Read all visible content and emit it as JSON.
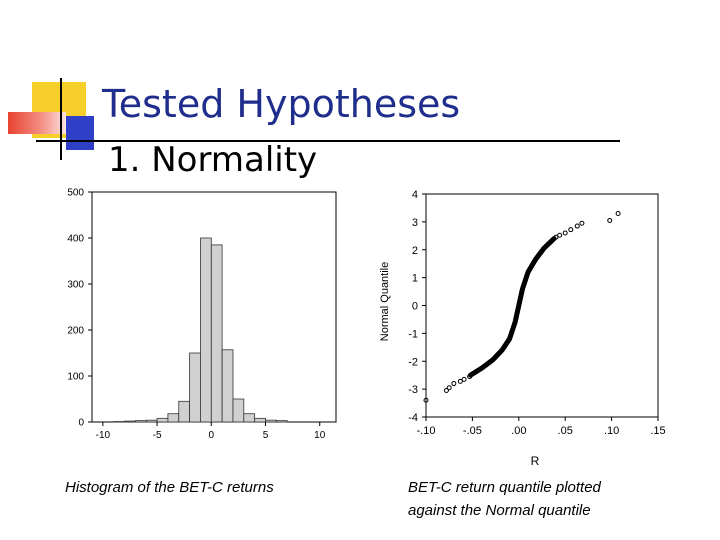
{
  "slide": {
    "title": "Tested Hypotheses",
    "subtitle": "1. Normality",
    "colors": {
      "title": "#1f2d8c",
      "deco_yellow": "#f6cf2a",
      "deco_red": "#e8432f",
      "deco_blue": "#2f3fc8"
    }
  },
  "captions": {
    "histogram": "Histogram of the BET-C returns",
    "qq_line1": "BET-C return quantile plotted",
    "qq_line2": "against the Normal quantile"
  },
  "chart_data": [
    {
      "type": "bar",
      "title": "Histogram of the BET-C returns",
      "xlabel": "",
      "ylabel": "",
      "xlim": [
        -11,
        11.5
      ],
      "ylim": [
        0,
        500
      ],
      "x_ticks": [
        "-10",
        "-5",
        "0",
        "5",
        "10"
      ],
      "y_ticks": [
        "0",
        "100",
        "200",
        "300",
        "400",
        "500"
      ],
      "bin_width": 1,
      "bins": [
        {
          "from": -9,
          "to": -8,
          "value": 1
        },
        {
          "from": -8,
          "to": -7,
          "value": 2
        },
        {
          "from": -7,
          "to": -6,
          "value": 3
        },
        {
          "from": -6,
          "to": -5,
          "value": 4
        },
        {
          "from": -5,
          "to": -4,
          "value": 8
        },
        {
          "from": -4,
          "to": -3,
          "value": 18
        },
        {
          "from": -3,
          "to": -2,
          "value": 45
        },
        {
          "from": -2,
          "to": -1,
          "value": 150
        },
        {
          "from": -1,
          "to": 0,
          "value": 400
        },
        {
          "from": 0,
          "to": 1,
          "value": 385
        },
        {
          "from": 1,
          "to": 2,
          "value": 157
        },
        {
          "from": 2,
          "to": 3,
          "value": 50
        },
        {
          "from": 3,
          "to": 4,
          "value": 18
        },
        {
          "from": 4,
          "to": 5,
          "value": 8
        },
        {
          "from": 5,
          "to": 6,
          "value": 4
        },
        {
          "from": 6,
          "to": 7,
          "value": 3
        }
      ]
    },
    {
      "type": "scatter",
      "title": "BET-C return quantile plotted against the Normal quantile",
      "xlabel": "R",
      "ylabel": "Normal Quantile",
      "xlim": [
        -0.1,
        0.15
      ],
      "ylim": [
        -4,
        4
      ],
      "x_ticks": [
        "-.10",
        "-.05",
        ".00",
        ".05",
        ".10",
        ".15"
      ],
      "y_ticks": [
        "-4",
        "-3",
        "-2",
        "-1",
        "0",
        "1",
        "2",
        "3",
        "4"
      ],
      "outliers": [
        {
          "x": -0.1,
          "y": -3.4
        },
        {
          "x": -0.078,
          "y": -3.05
        },
        {
          "x": -0.075,
          "y": -2.95
        },
        {
          "x": -0.07,
          "y": -2.8
        },
        {
          "x": -0.063,
          "y": -2.72
        },
        {
          "x": -0.059,
          "y": -2.65
        },
        {
          "x": -0.053,
          "y": -2.55
        },
        {
          "x": 0.04,
          "y": 2.45
        },
        {
          "x": 0.044,
          "y": 2.52
        },
        {
          "x": 0.05,
          "y": 2.6
        },
        {
          "x": 0.056,
          "y": 2.72
        },
        {
          "x": 0.063,
          "y": 2.85
        },
        {
          "x": 0.068,
          "y": 2.95
        },
        {
          "x": 0.098,
          "y": 3.05
        },
        {
          "x": 0.107,
          "y": 3.3
        }
      ],
      "curve": [
        {
          "x": -0.052,
          "y": -2.5
        },
        {
          "x": -0.04,
          "y": -2.25
        },
        {
          "x": -0.028,
          "y": -1.95
        },
        {
          "x": -0.018,
          "y": -1.6
        },
        {
          "x": -0.01,
          "y": -1.2
        },
        {
          "x": -0.004,
          "y": -0.6
        },
        {
          "x": 0.0,
          "y": 0.0
        },
        {
          "x": 0.004,
          "y": 0.6
        },
        {
          "x": 0.01,
          "y": 1.2
        },
        {
          "x": 0.018,
          "y": 1.65
        },
        {
          "x": 0.027,
          "y": 2.05
        },
        {
          "x": 0.038,
          "y": 2.4
        }
      ]
    }
  ]
}
